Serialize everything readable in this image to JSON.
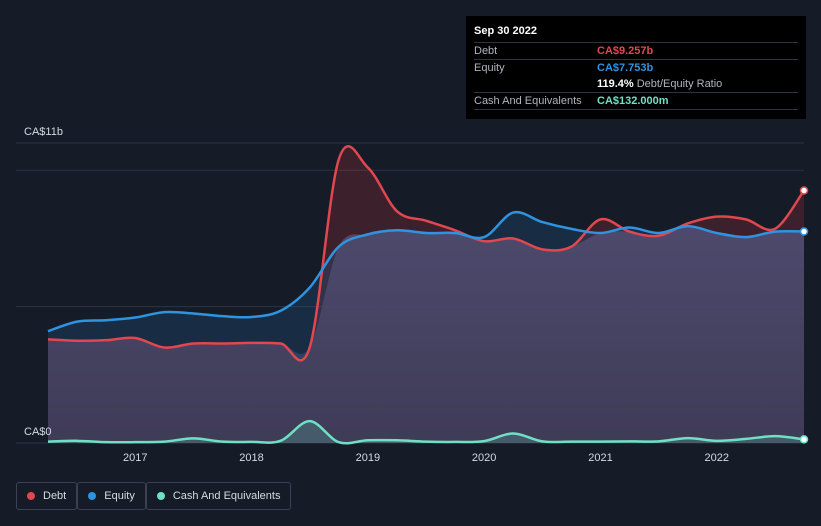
{
  "colors": {
    "debt": "#e0474f",
    "equity": "#2f94e0",
    "cash": "#6fe0c4",
    "background": "#151b27",
    "grid": "#2d3340"
  },
  "tooltip": {
    "date": "Sep 30 2022",
    "rows": [
      {
        "label": "Debt",
        "value": "CA$9.257b",
        "color": "#e0474f"
      },
      {
        "label": "Equity",
        "value": "CA$7.753b",
        "color": "#2f94e0"
      },
      {
        "label": "",
        "value": "119.4%",
        "suffix": "Debt/Equity Ratio",
        "color": "#ffffff"
      },
      {
        "label": "Cash And Equivalents",
        "value": "CA$132.000m",
        "color": "#6fe0c4"
      }
    ]
  },
  "legend": [
    {
      "label": "Debt",
      "color": "#e0474f"
    },
    {
      "label": "Equity",
      "color": "#2f94e0"
    },
    {
      "label": "Cash And Equivalents",
      "color": "#6fe0c4"
    }
  ],
  "chart_data": {
    "type": "area",
    "y_axis_top_label": "CA$11b",
    "y_axis_bottom_label": "CA$0",
    "ylim": [
      0,
      11
    ],
    "xlim": [
      2016.25,
      2022.75
    ],
    "x_ticks": [
      {
        "label": "2017",
        "value": 2017
      },
      {
        "label": "2018",
        "value": 2018
      },
      {
        "label": "2019",
        "value": 2019
      },
      {
        "label": "2020",
        "value": 2020
      },
      {
        "label": "2021",
        "value": 2021
      },
      {
        "label": "2022",
        "value": 2022
      }
    ],
    "series": [
      {
        "name": "Debt",
        "key": "debt",
        "points": [
          [
            2016.25,
            3.8
          ],
          [
            2016.5,
            3.75
          ],
          [
            2016.75,
            3.77
          ],
          [
            2017.0,
            3.85
          ],
          [
            2017.25,
            3.5
          ],
          [
            2017.5,
            3.65
          ],
          [
            2017.75,
            3.65
          ],
          [
            2018.0,
            3.67
          ],
          [
            2018.25,
            3.65
          ],
          [
            2018.5,
            3.5
          ],
          [
            2018.75,
            10.4
          ],
          [
            2019.0,
            10.1
          ],
          [
            2019.25,
            8.5
          ],
          [
            2019.5,
            8.15
          ],
          [
            2019.75,
            7.8
          ],
          [
            2020.0,
            7.4
          ],
          [
            2020.25,
            7.5
          ],
          [
            2020.5,
            7.1
          ],
          [
            2020.75,
            7.2
          ],
          [
            2021.0,
            8.2
          ],
          [
            2021.25,
            7.75
          ],
          [
            2021.5,
            7.6
          ],
          [
            2021.75,
            8.05
          ],
          [
            2022.0,
            8.3
          ],
          [
            2022.25,
            8.2
          ],
          [
            2022.5,
            7.85
          ],
          [
            2022.75,
            9.257
          ]
        ]
      },
      {
        "name": "Equity",
        "key": "equity",
        "points": [
          [
            2016.25,
            4.1
          ],
          [
            2016.5,
            4.45
          ],
          [
            2016.75,
            4.5
          ],
          [
            2017.0,
            4.6
          ],
          [
            2017.25,
            4.8
          ],
          [
            2017.5,
            4.75
          ],
          [
            2017.75,
            4.65
          ],
          [
            2018.0,
            4.62
          ],
          [
            2018.25,
            4.85
          ],
          [
            2018.5,
            5.7
          ],
          [
            2018.75,
            7.2
          ],
          [
            2019.0,
            7.65
          ],
          [
            2019.25,
            7.8
          ],
          [
            2019.5,
            7.7
          ],
          [
            2019.75,
            7.7
          ],
          [
            2020.0,
            7.55
          ],
          [
            2020.25,
            8.45
          ],
          [
            2020.5,
            8.1
          ],
          [
            2020.75,
            7.85
          ],
          [
            2021.0,
            7.7
          ],
          [
            2021.25,
            7.9
          ],
          [
            2021.5,
            7.7
          ],
          [
            2021.75,
            7.95
          ],
          [
            2022.0,
            7.7
          ],
          [
            2022.25,
            7.55
          ],
          [
            2022.5,
            7.75
          ],
          [
            2022.75,
            7.753
          ]
        ]
      },
      {
        "name": "Cash And Equivalents",
        "key": "cash",
        "points": [
          [
            2016.25,
            0.05
          ],
          [
            2016.5,
            0.08
          ],
          [
            2016.75,
            0.03
          ],
          [
            2017.0,
            0.03
          ],
          [
            2017.25,
            0.05
          ],
          [
            2017.5,
            0.17
          ],
          [
            2017.75,
            0.05
          ],
          [
            2018.0,
            0.04
          ],
          [
            2018.25,
            0.08
          ],
          [
            2018.5,
            0.8
          ],
          [
            2018.75,
            0.03
          ],
          [
            2019.0,
            0.1
          ],
          [
            2019.25,
            0.1
          ],
          [
            2019.5,
            0.05
          ],
          [
            2019.75,
            0.04
          ],
          [
            2020.0,
            0.07
          ],
          [
            2020.25,
            0.35
          ],
          [
            2020.5,
            0.06
          ],
          [
            2020.75,
            0.05
          ],
          [
            2021.0,
            0.05
          ],
          [
            2021.25,
            0.06
          ],
          [
            2021.5,
            0.06
          ],
          [
            2021.75,
            0.18
          ],
          [
            2022.0,
            0.08
          ],
          [
            2022.25,
            0.15
          ],
          [
            2022.5,
            0.25
          ],
          [
            2022.75,
            0.132
          ]
        ]
      }
    ]
  }
}
